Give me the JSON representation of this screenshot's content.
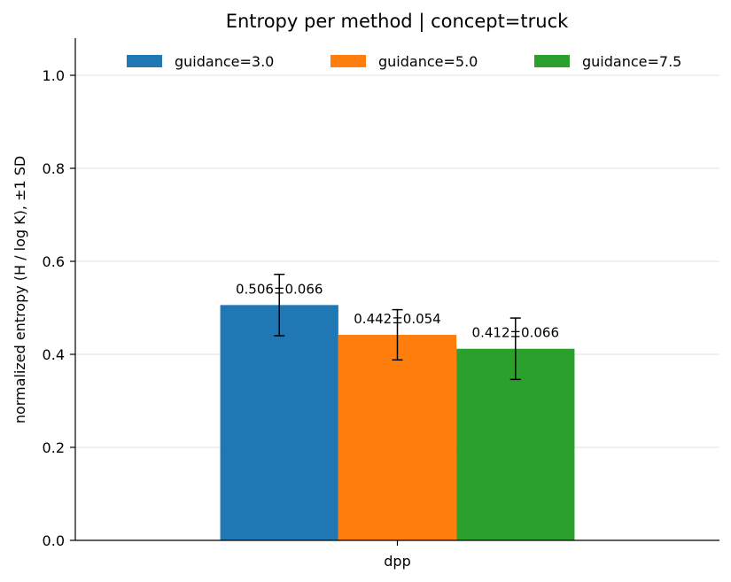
{
  "chart_data": {
    "type": "bar",
    "title": "Entropy per method | concept=truck",
    "xlabel": "",
    "ylabel": "normalized entropy (H / log K), ±1 SD",
    "categories": [
      "dpp"
    ],
    "ylim": [
      0,
      1.08
    ],
    "yticks": [
      {
        "value": 0.0,
        "label": "0.0"
      },
      {
        "value": 0.2,
        "label": "0.2"
      },
      {
        "value": 0.4,
        "label": "0.4"
      },
      {
        "value": 0.6,
        "label": "0.6"
      },
      {
        "value": 0.8,
        "label": "0.8"
      },
      {
        "value": 1.0,
        "label": "1.0"
      }
    ],
    "grid": "y",
    "legend_position": "top",
    "series": [
      {
        "name": "guidance=3.0",
        "color": "#1f77b4",
        "values": [
          0.506
        ],
        "errors": [
          0.066
        ],
        "labels": [
          "0.506±0.066"
        ]
      },
      {
        "name": "guidance=5.0",
        "color": "#ff7f0e",
        "values": [
          0.442
        ],
        "errors": [
          0.054
        ],
        "labels": [
          "0.442±0.054"
        ]
      },
      {
        "name": "guidance=7.5",
        "color": "#2ca02c",
        "values": [
          0.412
        ],
        "errors": [
          0.066
        ],
        "labels": [
          "0.412±0.066"
        ]
      }
    ]
  }
}
